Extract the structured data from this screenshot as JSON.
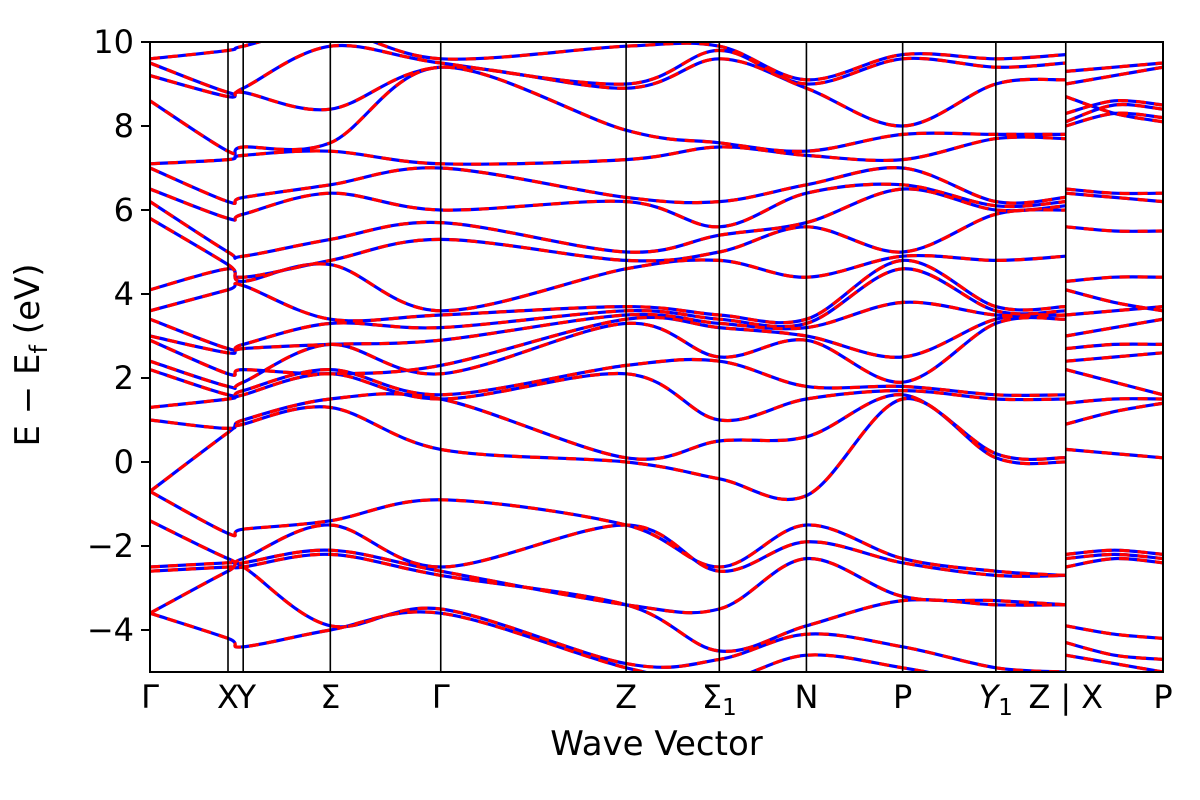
{
  "chart_data": {
    "type": "line",
    "title": "",
    "xlabel": "Wave Vector",
    "ylabel": "E − Ef (eV)",
    "ylabel_parts": {
      "main": "E − E",
      "sub": "f",
      "rest": " (eV)"
    },
    "ylim": [
      -5,
      10
    ],
    "yticks": [
      10,
      8,
      6,
      4,
      2,
      0,
      -2,
      -4
    ],
    "grid": "vertical-kpoint-lines",
    "legend": "none",
    "frame_color": "#000000",
    "background_color": "#ffffff",
    "kpath1_positions": [
      0,
      0.077,
      0.092,
      0.178,
      0.287,
      0.47,
      0.562,
      0.648,
      0.743,
      0.835,
      0.904
    ],
    "kpath2_positions": [
      0.904,
      0.952,
      1.0
    ],
    "break_after_path1": true,
    "xticklabels": [
      {
        "text": "Γ",
        "pos": 0
      },
      {
        "text": "X",
        "pos": 0.077
      },
      {
        "text": "Y",
        "pos": 0.095
      },
      {
        "text": "Σ",
        "pos": 0.178
      },
      {
        "text": "Γ",
        "pos": 0.287
      },
      {
        "text": "Z",
        "pos": 0.47
      },
      {
        "text": "Σ",
        "sub": "1",
        "pos": 0.562
      },
      {
        "text": "N",
        "pos": 0.648
      },
      {
        "text": "P",
        "pos": 0.743
      },
      {
        "text": "Y",
        "sub": "1",
        "italic": true,
        "pos": 0.835
      },
      {
        "text": "Z",
        "pos": 0.878
      },
      {
        "text": "|",
        "pos": 0.904
      },
      {
        "text": "X",
        "pos": 0.93
      },
      {
        "text": "P",
        "pos": 1.0
      }
    ],
    "series": [
      {
        "name": "bands-solid-underlay",
        "color": "#0000ff",
        "dash": "",
        "width": 3.2
      },
      {
        "name": "bands-dashed-overlay",
        "color": "#ff0000",
        "dash": "10 8",
        "width": 3.2
      }
    ],
    "bands": [
      {
        "a": [
          -3.6,
          -4.2,
          -4.4,
          -4.0,
          -3.6,
          -4.9,
          -5.2,
          -4.6,
          -4.9,
          -5.3,
          -5.4
        ],
        "b": [
          -4.6,
          -4.8,
          -5.0
        ]
      },
      {
        "a": [
          -3.6,
          -2.6,
          -2.5,
          -3.9,
          -3.5,
          -4.8,
          -4.7,
          -4.1,
          -4.4,
          -4.9,
          -5.0
        ],
        "b": [
          -4.3,
          -4.6,
          -4.7
        ]
      },
      {
        "a": [
          -2.6,
          -2.5,
          -2.5,
          -2.2,
          -2.7,
          -3.4,
          -4.5,
          -3.9,
          -3.3,
          -3.4,
          -3.4
        ],
        "b": [
          -3.9,
          -4.1,
          -4.2
        ]
      },
      {
        "a": [
          -2.5,
          -2.4,
          -2.4,
          -2.1,
          -2.6,
          -3.4,
          -3.5,
          -2.3,
          -3.2,
          -3.3,
          -3.4
        ],
        "b": [
          -2.5,
          -2.3,
          -2.4
        ]
      },
      {
        "a": [
          -1.4,
          -2.3,
          -2.3,
          -1.5,
          -2.5,
          -1.5,
          -2.6,
          -1.9,
          -2.4,
          -2.7,
          -2.7
        ],
        "b": [
          -2.3,
          -2.2,
          -2.3
        ]
      },
      {
        "a": [
          -0.7,
          -1.7,
          -1.6,
          -1.4,
          -0.9,
          -1.5,
          -2.5,
          -1.5,
          -2.3,
          -2.6,
          -2.7
        ],
        "b": [
          -2.2,
          -2.1,
          -2.2
        ]
      },
      {
        "a": [
          -0.7,
          0.7,
          0.9,
          1.3,
          0.3,
          0.0,
          -0.4,
          -0.8,
          1.5,
          0.1,
          0.0
        ],
        "b": [
          0.3,
          0.2,
          0.1
        ]
      },
      {
        "a": [
          1.0,
          0.8,
          1.0,
          1.5,
          1.5,
          0.1,
          0.5,
          0.6,
          1.6,
          0.2,
          0.1
        ],
        "b": [
          0.9,
          1.2,
          1.4
        ]
      },
      {
        "a": [
          1.3,
          1.5,
          1.6,
          2.1,
          1.5,
          2.1,
          1.0,
          1.5,
          1.7,
          1.5,
          1.5
        ],
        "b": [
          1.4,
          1.5,
          1.5
        ]
      },
      {
        "a": [
          2.2,
          1.6,
          1.7,
          2.2,
          1.6,
          2.3,
          2.4,
          1.8,
          1.8,
          1.6,
          1.6
        ],
        "b": [
          2.2,
          1.9,
          1.6
        ]
      },
      {
        "a": [
          2.4,
          1.8,
          1.9,
          2.8,
          2.1,
          3.3,
          2.5,
          2.9,
          1.9,
          3.3,
          3.4
        ],
        "b": [
          2.4,
          2.5,
          2.6
        ]
      },
      {
        "a": [
          2.9,
          2.1,
          2.2,
          2.1,
          2.3,
          3.4,
          3.2,
          3.0,
          2.5,
          3.4,
          3.5
        ],
        "b": [
          2.7,
          2.8,
          2.8
        ]
      },
      {
        "a": [
          3.0,
          2.6,
          2.7,
          2.8,
          2.9,
          3.5,
          3.3,
          3.2,
          3.8,
          3.5,
          3.5
        ],
        "b": [
          3.0,
          3.2,
          3.4
        ]
      },
      {
        "a": [
          3.4,
          2.7,
          2.8,
          3.3,
          3.2,
          3.6,
          3.4,
          3.3,
          4.6,
          3.6,
          3.6
        ],
        "b": [
          3.5,
          3.6,
          3.7
        ]
      },
      {
        "a": [
          3.6,
          4.1,
          4.2,
          3.4,
          3.5,
          3.7,
          3.5,
          3.4,
          4.8,
          3.7,
          3.7
        ],
        "b": [
          4.1,
          3.8,
          3.6
        ]
      },
      {
        "a": [
          4.1,
          4.6,
          4.3,
          4.7,
          3.6,
          4.6,
          4.8,
          4.4,
          4.9,
          4.8,
          4.9
        ],
        "b": [
          4.3,
          4.4,
          4.4
        ]
      },
      {
        "a": [
          5.8,
          4.7,
          4.4,
          4.8,
          5.3,
          4.8,
          5.0,
          5.6,
          5.0,
          5.9,
          6.0
        ],
        "b": [
          5.6,
          5.5,
          5.5
        ]
      },
      {
        "a": [
          6.2,
          5.0,
          4.9,
          5.3,
          5.7,
          5.0,
          5.4,
          5.7,
          6.5,
          6.0,
          6.1
        ],
        "b": [
          6.4,
          6.3,
          6.2
        ]
      },
      {
        "a": [
          6.5,
          5.8,
          5.9,
          6.4,
          6.0,
          6.2,
          5.6,
          6.4,
          6.6,
          6.1,
          6.2
        ],
        "b": [
          6.5,
          6.4,
          6.4
        ]
      },
      {
        "a": [
          7.0,
          6.2,
          6.3,
          6.6,
          7.0,
          6.3,
          6.2,
          6.6,
          7.0,
          6.2,
          6.3
        ],
        "b": [
          8.0,
          8.3,
          8.2
        ]
      },
      {
        "a": [
          7.1,
          7.2,
          7.3,
          7.4,
          7.1,
          7.2,
          7.5,
          7.3,
          7.2,
          7.7,
          7.7
        ],
        "b": [
          8.1,
          8.5,
          8.4
        ]
      },
      {
        "a": [
          8.6,
          7.4,
          7.5,
          7.6,
          9.4,
          7.9,
          7.6,
          7.4,
          7.8,
          7.8,
          7.8
        ],
        "b": [
          8.3,
          8.6,
          8.5
        ]
      },
      {
        "a": [
          9.2,
          8.7,
          8.8,
          8.4,
          9.4,
          8.9,
          9.6,
          8.9,
          8.0,
          9.0,
          9.1
        ],
        "b": [
          8.7,
          8.3,
          8.1
        ]
      },
      {
        "a": [
          9.5,
          8.8,
          8.9,
          9.9,
          9.5,
          9.0,
          9.8,
          9.0,
          9.6,
          9.4,
          9.5
        ],
        "b": [
          9.0,
          9.2,
          9.4
        ]
      },
      {
        "a": [
          9.6,
          9.8,
          9.9,
          10.3,
          9.6,
          9.9,
          9.9,
          9.1,
          9.7,
          9.6,
          9.7
        ],
        "b": [
          9.3,
          9.4,
          9.5
        ]
      }
    ]
  }
}
